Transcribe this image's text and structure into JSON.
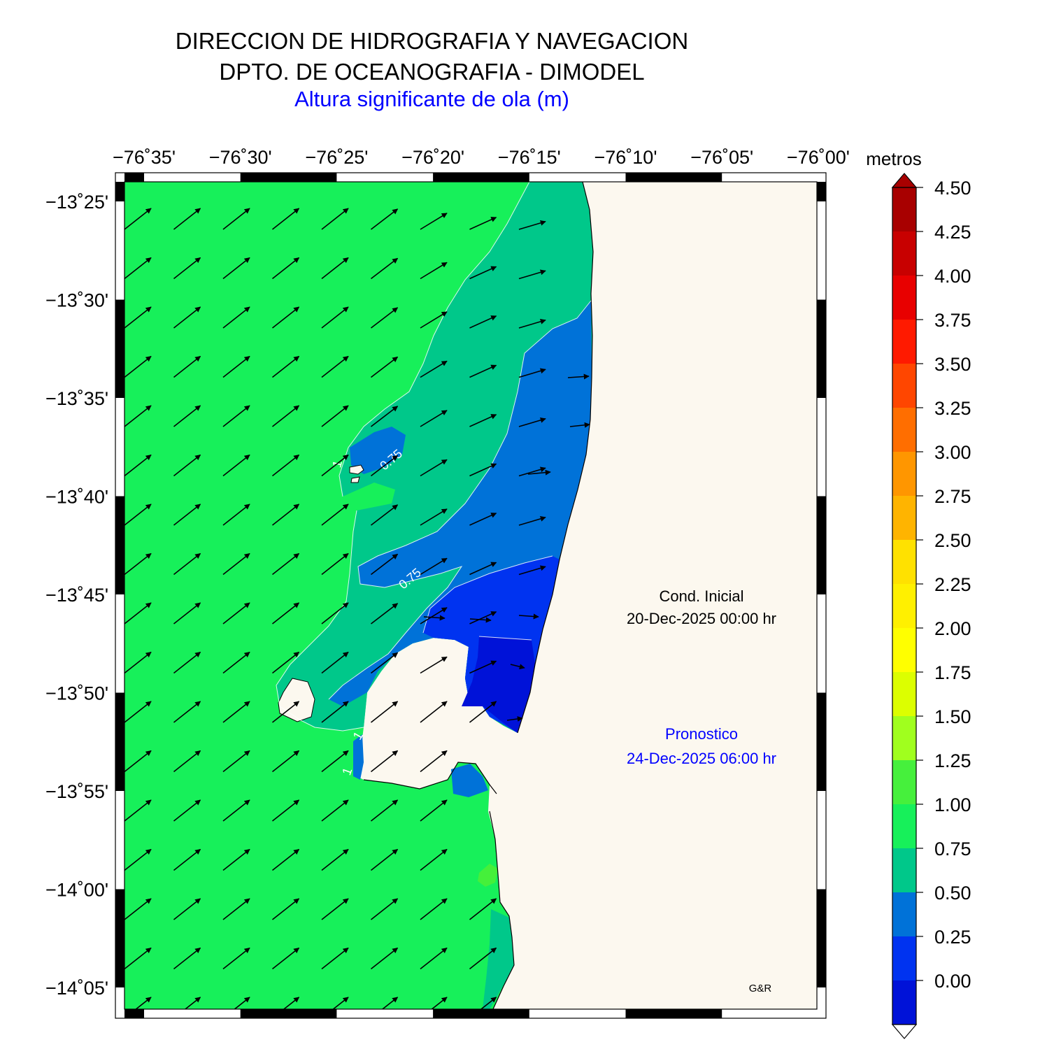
{
  "header": {
    "line1": "DIRECCION DE HIDROGRAFIA Y NAVEGACION",
    "line2": "DPTO. DE OCEANOGRAFIA - DIMODEL",
    "line3": "Altura significante de ola (m)"
  },
  "map": {
    "lon_ticks": [
      "−76˚35'",
      "−76˚30'",
      "−76˚25'",
      "−76˚20'",
      "−76˚15'",
      "−76˚10'",
      "−76˚05'",
      "−76˚00'"
    ],
    "lat_ticks": [
      "−13˚25'",
      "−13˚30'",
      "−13˚35'",
      "−13˚40'",
      "−13˚45'",
      "−13˚50'",
      "−13˚55'",
      "−14˚00'",
      "−14˚05'"
    ],
    "contour_labels": [
      "0.75",
      "0.75",
      "1",
      "1",
      "1"
    ],
    "cond_inicial_label": "Cond. Inicial",
    "cond_inicial_date": "20-Dec-2025 00:00 hr",
    "pronostico_label": "Pronostico",
    "pronostico_date": "24-Dec-2025 06:00 hr",
    "credit": "G&R",
    "colors": {
      "land": "#fcf8ef",
      "band_0_25": "#0012d8",
      "band_25_50": "#0033f0",
      "band_50_75": "#0072d8",
      "band_75_100": "#00c88a",
      "band_100_125": "#17f05a",
      "band_125_150": "#45f03a"
    }
  },
  "colorbar": {
    "title": "metros",
    "tick_labels": [
      "4.50",
      "4.25",
      "4.00",
      "3.75",
      "3.50",
      "3.25",
      "3.00",
      "2.75",
      "2.50",
      "2.25",
      "2.00",
      "1.75",
      "1.50",
      "1.25",
      "1.00",
      "0.75",
      "0.50",
      "0.25",
      "0.00"
    ],
    "colors": [
      "#a80000",
      "#c80000",
      "#e80000",
      "#ff1a00",
      "#ff4600",
      "#ff6e00",
      "#ff9600",
      "#ffb400",
      "#ffe100",
      "#fff000",
      "#ffff00",
      "#dcff00",
      "#a0ff1e",
      "#46f03c",
      "#17f05a",
      "#00c88a",
      "#0072d8",
      "#0033f0",
      "#0012d8"
    ]
  }
}
